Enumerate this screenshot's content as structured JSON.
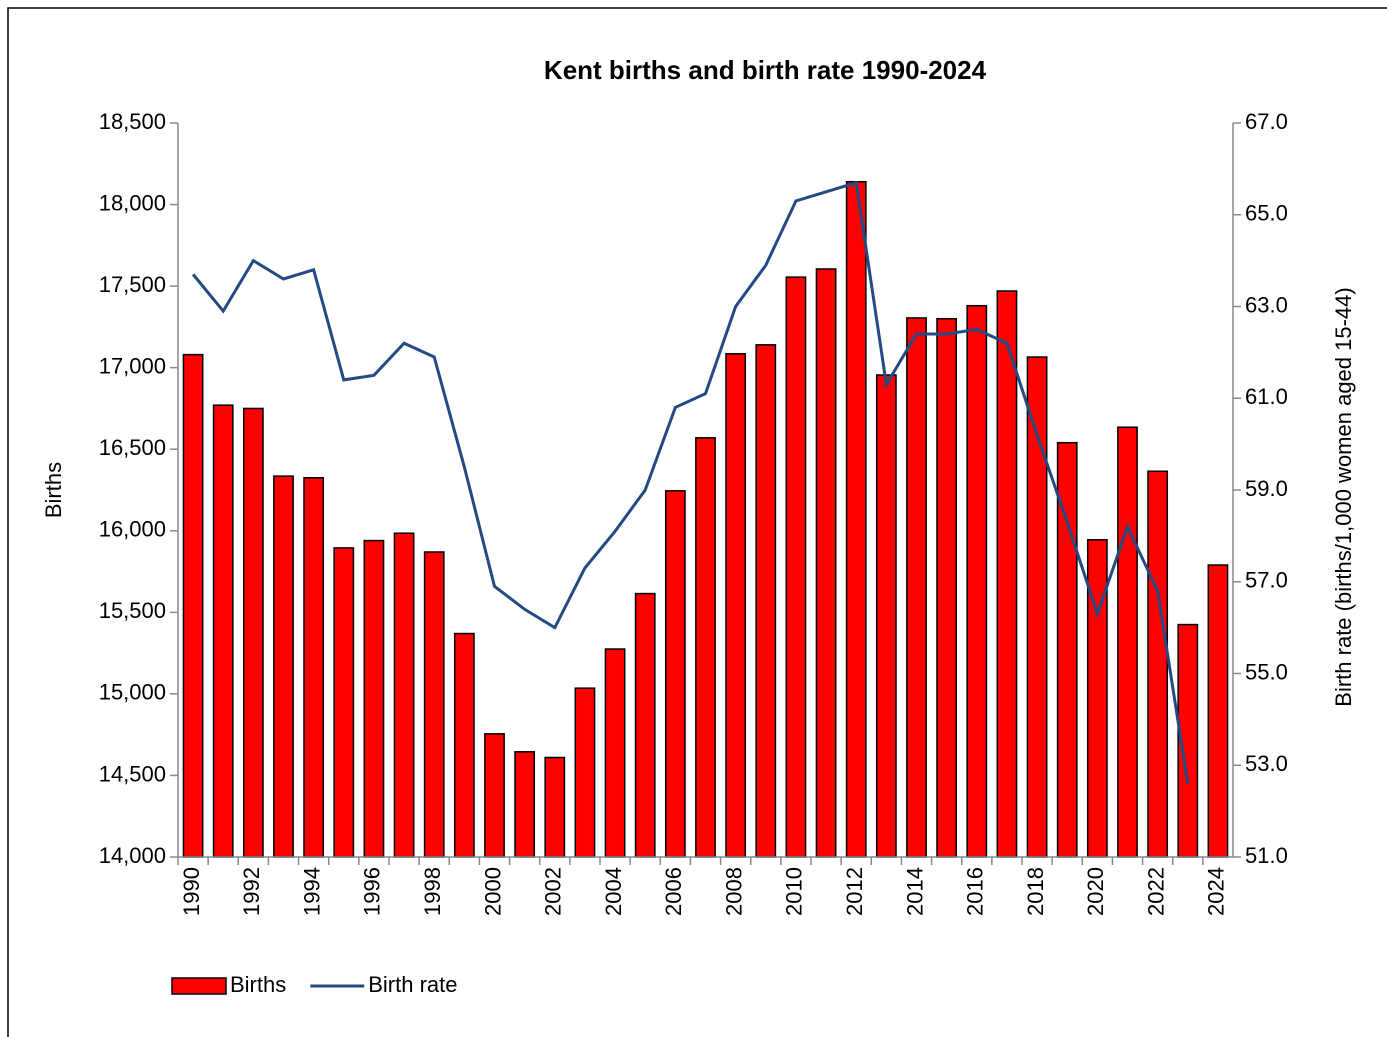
{
  "chart_data": {
    "type": "bar_line",
    "title": "Kent births and birth rate 1990-2024",
    "y_label": "Births",
    "y2_label": "Birth rate (births/1,000 women aged 15-44)",
    "categories": [
      "1990",
      null,
      "1992",
      null,
      "1994",
      null,
      "1996",
      null,
      "1998",
      null,
      "2000",
      null,
      "2002",
      null,
      "2004",
      null,
      "2006",
      null,
      "2008",
      null,
      "2010",
      null,
      "2012",
      null,
      "2014",
      null,
      "2016",
      null,
      "2018",
      null,
      "2020",
      null,
      "2022",
      null,
      "2024"
    ],
    "series": [
      {
        "name": "Births",
        "type": "bar",
        "color": "#ff0000",
        "values": [
          17080,
          16770,
          16750,
          16335,
          16325,
          15895,
          15940,
          15985,
          15870,
          15370,
          14755,
          14645,
          14610,
          15035,
          15275,
          15615,
          16245,
          16570,
          17085,
          17140,
          17555,
          17605,
          18140,
          16955,
          17305,
          17300,
          17380,
          17470,
          17065,
          16540,
          15945,
          16635,
          16365,
          15425,
          15790
        ]
      },
      {
        "name": "Birth rate",
        "type": "line",
        "axis": "y2",
        "color": "#244a84",
        "values": [
          63.7,
          62.9,
          64.0,
          63.6,
          63.8,
          61.4,
          61.5,
          62.2,
          61.9,
          59.5,
          56.9,
          56.4,
          56.0,
          57.3,
          58.1,
          59.0,
          60.8,
          61.1,
          63.0,
          63.9,
          65.3,
          65.5,
          65.7,
          61.3,
          62.4,
          62.4,
          62.5,
          62.2,
          60.2,
          58.3,
          56.3,
          58.2,
          56.8,
          52.6,
          null
        ]
      }
    ],
    "ylim": [
      14000,
      18500
    ],
    "yticks": [
      {
        "value": 14000,
        "label": "14,000"
      },
      {
        "value": 14500,
        "label": "14,500"
      },
      {
        "value": 15000,
        "label": "15,000"
      },
      {
        "value": 15500,
        "label": "15,500"
      },
      {
        "value": 16000,
        "label": "16,000"
      },
      {
        "value": 16500,
        "label": "16,500"
      },
      {
        "value": 17000,
        "label": "17,000"
      },
      {
        "value": 17500,
        "label": "17,500"
      },
      {
        "value": 18000,
        "label": "18,000"
      },
      {
        "value": 18500,
        "label": "18,500"
      }
    ],
    "y2lim": [
      51,
      67
    ],
    "y2ticks": [
      {
        "value": 51,
        "label": "51.0"
      },
      {
        "value": 53,
        "label": "53.0"
      },
      {
        "value": 55,
        "label": "55.0"
      },
      {
        "value": 57,
        "label": "57.0"
      },
      {
        "value": 59,
        "label": "59.0"
      },
      {
        "value": 61,
        "label": "61.0"
      },
      {
        "value": 63,
        "label": "63.0"
      },
      {
        "value": 65,
        "label": "65.0"
      },
      {
        "value": 67,
        "label": "67.0"
      }
    ],
    "legend": "bottom-left"
  }
}
